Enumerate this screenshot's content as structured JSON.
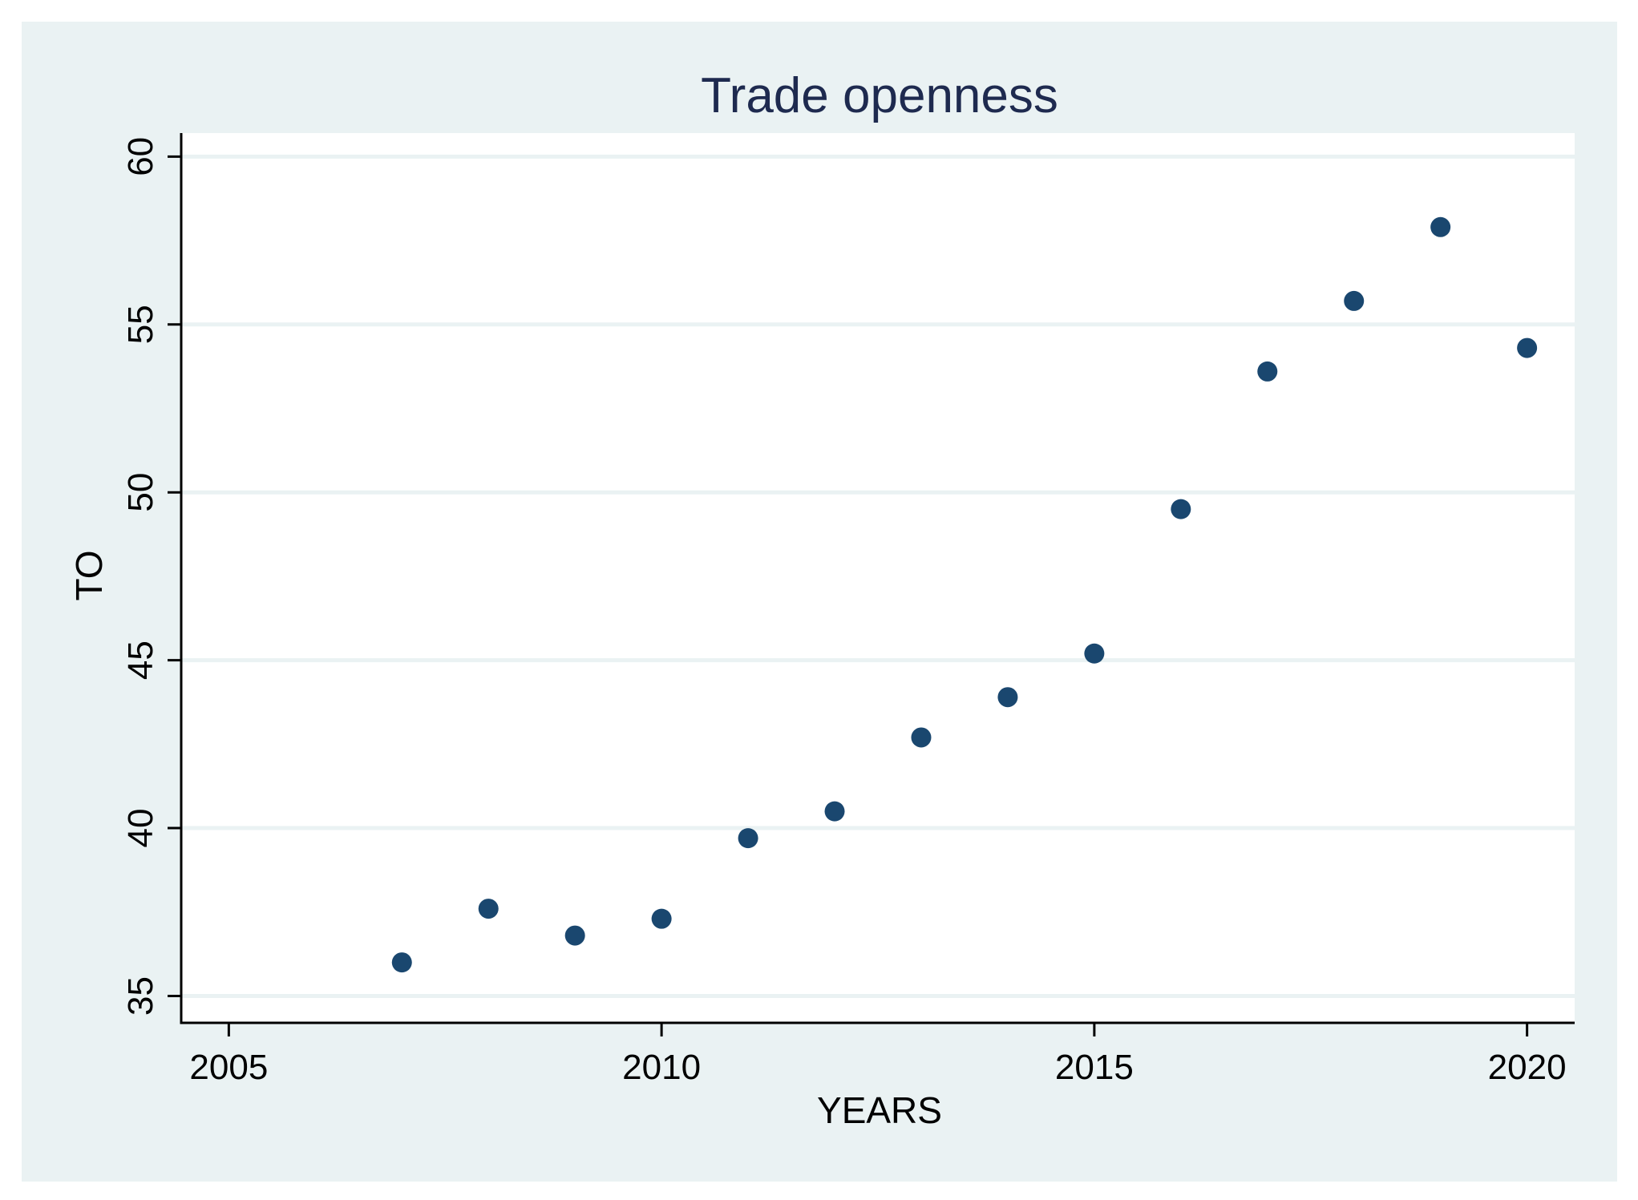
{
  "chart_data": {
    "type": "scatter",
    "title": "Trade openness",
    "xlabel": "YEARS",
    "ylabel": "TO",
    "xlim": [
      2004.45,
      2020.55
    ],
    "ylim": [
      34.2,
      60.7
    ],
    "xticks": [
      2005,
      2010,
      2015,
      2020
    ],
    "yticks": [
      35,
      40,
      45,
      50,
      55,
      60
    ],
    "grid": true,
    "colors": {
      "outer_background": "#eaf2f3",
      "plot_background": "#ffffff",
      "grid": "#eaf2f3",
      "marker": "#1a476f",
      "title": "#1e2a4f"
    },
    "series": [
      {
        "x": [
          2007,
          2008,
          2009,
          2010,
          2011,
          2012,
          2013,
          2014,
          2015,
          2016,
          2017,
          2018,
          2019,
          2020
        ],
        "y": [
          36.0,
          37.6,
          36.8,
          37.3,
          39.7,
          40.5,
          42.7,
          43.9,
          45.2,
          49.5,
          53.6,
          55.7,
          57.9,
          54.3
        ]
      }
    ]
  }
}
